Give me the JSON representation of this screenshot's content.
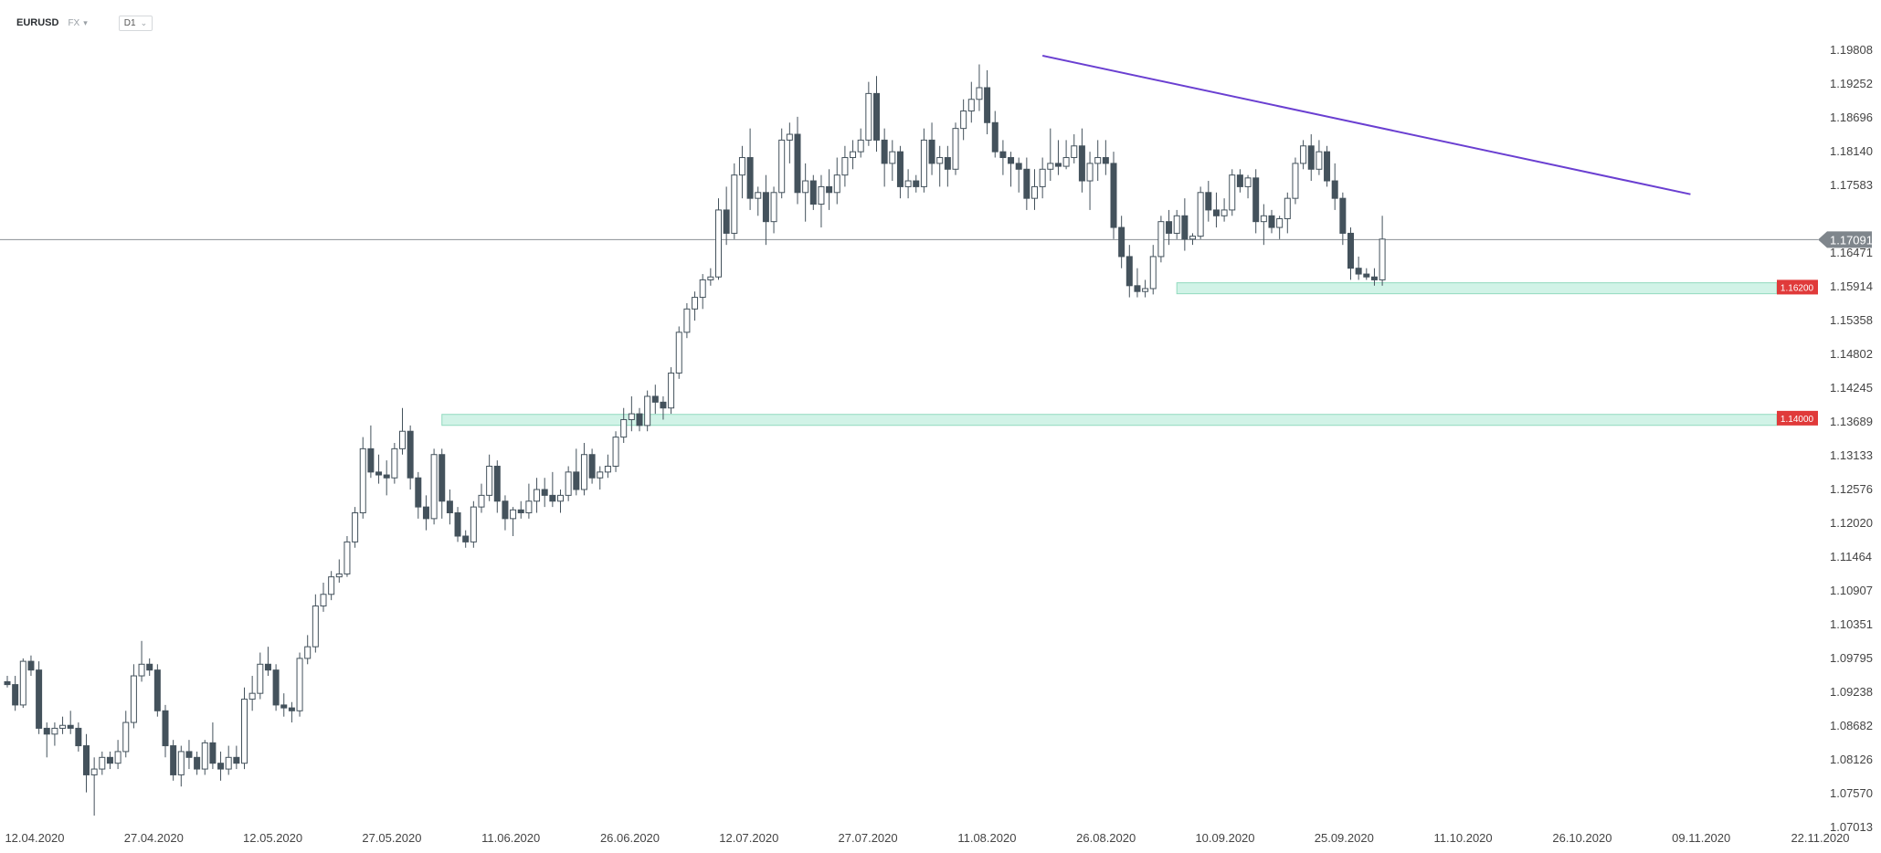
{
  "header": {
    "symbol": "EURUSD",
    "market": "FX",
    "timeframe": "D1"
  },
  "colors": {
    "bull_fill": "#ffffff",
    "bear_fill": "#44525c",
    "candle_stroke": "#44525c",
    "trendline": "#6a3fd1",
    "zone_fill": "#c9f2e3",
    "zone_stroke": "#7fd4b4",
    "price_line": "#8a8f94",
    "current_tag": "#7f868c",
    "level_tag": "#e03a3a"
  },
  "chart_data": {
    "type": "candlestick",
    "y_ticks": [
      "1.19808",
      "1.19252",
      "1.18696",
      "1.18140",
      "1.17583",
      "1.17091",
      "1.16471",
      "1.15914",
      "1.15358",
      "1.14802",
      "1.14245",
      "1.13689",
      "1.13133",
      "1.12576",
      "1.12020",
      "1.11464",
      "1.10907",
      "1.10351",
      "1.09795",
      "1.09238",
      "1.08682",
      "1.08126",
      "1.07570",
      "1.07013"
    ],
    "ylim": [
      1.07013,
      1.205
    ],
    "x_ticks": [
      "12.04.2020",
      "27.04.2020",
      "12.05.2020",
      "27.05.2020",
      "11.06.2020",
      "26.06.2020",
      "12.07.2020",
      "27.07.2020",
      "11.08.2020",
      "26.08.2020",
      "10.09.2020",
      "25.09.2020",
      "11.10.2020",
      "26.10.2020",
      "09.11.2020",
      "22.11.2020"
    ],
    "current_price": "1.17091",
    "levels": [
      {
        "label": "1.16200",
        "top": 1.1635,
        "bottom": 1.162,
        "from_index": 148
      },
      {
        "label": "1.14000",
        "top": 1.1409,
        "bottom": 1.1396,
        "from_index": 55
      }
    ],
    "trendline": {
      "from": {
        "index": 131,
        "price": 1.2025
      },
      "to": {
        "index": 213,
        "price": 1.1787
      }
    },
    "candles": [
      [
        1.095,
        1.096,
        1.094,
        1.0945
      ],
      [
        1.0945,
        1.096,
        1.09,
        1.091
      ],
      [
        1.091,
        1.099,
        1.0905,
        1.0985
      ],
      [
        1.0985,
        1.0995,
        1.096,
        1.097
      ],
      [
        1.097,
        1.0985,
        1.086,
        1.087
      ],
      [
        1.087,
        1.088,
        1.082,
        1.086
      ],
      [
        1.086,
        1.088,
        1.084,
        1.087
      ],
      [
        1.087,
        1.089,
        1.086,
        1.0875
      ],
      [
        1.0875,
        1.09,
        1.086,
        1.087
      ],
      [
        1.087,
        1.088,
        1.083,
        1.084
      ],
      [
        1.084,
        1.086,
        1.076,
        1.079
      ],
      [
        1.079,
        1.082,
        1.072,
        1.08
      ],
      [
        1.08,
        1.083,
        1.079,
        1.082
      ],
      [
        1.082,
        1.083,
        1.08,
        1.081
      ],
      [
        1.081,
        1.085,
        1.08,
        1.083
      ],
      [
        1.083,
        1.09,
        1.082,
        1.088
      ],
      [
        1.088,
        1.098,
        1.087,
        1.096
      ],
      [
        1.096,
        1.102,
        1.095,
        1.098
      ],
      [
        1.098,
        1.099,
        1.096,
        1.097
      ],
      [
        1.097,
        1.098,
        1.089,
        1.09
      ],
      [
        1.09,
        1.091,
        1.082,
        1.084
      ],
      [
        1.084,
        1.085,
        1.078,
        1.079
      ],
      [
        1.079,
        1.084,
        1.077,
        1.083
      ],
      [
        1.083,
        1.085,
        1.08,
        1.082
      ],
      [
        1.082,
        1.083,
        1.079,
        1.08
      ],
      [
        1.08,
        1.085,
        1.079,
        1.0845
      ],
      [
        1.0845,
        1.088,
        1.08,
        1.081
      ],
      [
        1.081,
        1.083,
        1.078,
        1.08
      ],
      [
        1.08,
        1.084,
        1.079,
        1.082
      ],
      [
        1.082,
        1.084,
        1.08,
        1.081
      ],
      [
        1.081,
        1.094,
        1.08,
        1.092
      ],
      [
        1.092,
        1.096,
        1.09,
        1.093
      ],
      [
        1.093,
        1.1,
        1.092,
        1.098
      ],
      [
        1.098,
        1.101,
        1.096,
        1.097
      ],
      [
        1.097,
        1.098,
        1.09,
        1.091
      ],
      [
        1.091,
        1.093,
        1.089,
        1.0905
      ],
      [
        1.0905,
        1.0915,
        1.088,
        1.09
      ],
      [
        1.09,
        1.1,
        1.089,
        1.099
      ],
      [
        1.099,
        1.103,
        1.098,
        1.101
      ],
      [
        1.101,
        1.11,
        1.1,
        1.108
      ],
      [
        1.108,
        1.112,
        1.107,
        1.11
      ],
      [
        1.11,
        1.114,
        1.109,
        1.113
      ],
      [
        1.113,
        1.116,
        1.112,
        1.1135
      ],
      [
        1.1135,
        1.12,
        1.113,
        1.119
      ],
      [
        1.119,
        1.125,
        1.118,
        1.124
      ],
      [
        1.124,
        1.137,
        1.123,
        1.135
      ],
      [
        1.135,
        1.139,
        1.13,
        1.131
      ],
      [
        1.131,
        1.134,
        1.129,
        1.1305
      ],
      [
        1.1305,
        1.133,
        1.127,
        1.13
      ],
      [
        1.13,
        1.136,
        1.129,
        1.135
      ],
      [
        1.135,
        1.142,
        1.134,
        1.138
      ],
      [
        1.138,
        1.139,
        1.128,
        1.13
      ],
      [
        1.13,
        1.131,
        1.123,
        1.125
      ],
      [
        1.125,
        1.127,
        1.121,
        1.123
      ],
      [
        1.123,
        1.135,
        1.122,
        1.134
      ],
      [
        1.134,
        1.135,
        1.123,
        1.126
      ],
      [
        1.126,
        1.128,
        1.122,
        1.124
      ],
      [
        1.124,
        1.125,
        1.119,
        1.12
      ],
      [
        1.12,
        1.121,
        1.118,
        1.119
      ],
      [
        1.119,
        1.126,
        1.118,
        1.125
      ],
      [
        1.125,
        1.129,
        1.124,
        1.127
      ],
      [
        1.127,
        1.134,
        1.126,
        1.132
      ],
      [
        1.132,
        1.133,
        1.124,
        1.126
      ],
      [
        1.126,
        1.127,
        1.121,
        1.123
      ],
      [
        1.123,
        1.125,
        1.12,
        1.1245
      ],
      [
        1.1245,
        1.126,
        1.123,
        1.124
      ],
      [
        1.124,
        1.129,
        1.123,
        1.126
      ],
      [
        1.126,
        1.13,
        1.124,
        1.128
      ],
      [
        1.128,
        1.13,
        1.125,
        1.127
      ],
      [
        1.127,
        1.131,
        1.125,
        1.126
      ],
      [
        1.126,
        1.128,
        1.124,
        1.127
      ],
      [
        1.127,
        1.132,
        1.126,
        1.131
      ],
      [
        1.131,
        1.135,
        1.127,
        1.128
      ],
      [
        1.128,
        1.136,
        1.127,
        1.134
      ],
      [
        1.134,
        1.135,
        1.129,
        1.13
      ],
      [
        1.13,
        1.132,
        1.128,
        1.131
      ],
      [
        1.131,
        1.134,
        1.13,
        1.132
      ],
      [
        1.132,
        1.138,
        1.131,
        1.137
      ],
      [
        1.137,
        1.142,
        1.136,
        1.14
      ],
      [
        1.14,
        1.144,
        1.138,
        1.141
      ],
      [
        1.141,
        1.142,
        1.138,
        1.139
      ],
      [
        1.139,
        1.145,
        1.138,
        1.144
      ],
      [
        1.144,
        1.146,
        1.141,
        1.143
      ],
      [
        1.143,
        1.144,
        1.14,
        1.142
      ],
      [
        1.142,
        1.149,
        1.141,
        1.148
      ],
      [
        1.148,
        1.156,
        1.147,
        1.155
      ],
      [
        1.155,
        1.16,
        1.154,
        1.159
      ],
      [
        1.159,
        1.162,
        1.157,
        1.161
      ],
      [
        1.161,
        1.165,
        1.159,
        1.164
      ],
      [
        1.164,
        1.166,
        1.163,
        1.1645
      ],
      [
        1.1645,
        1.178,
        1.164,
        1.176
      ],
      [
        1.176,
        1.18,
        1.17,
        1.172
      ],
      [
        1.172,
        1.184,
        1.171,
        1.182
      ],
      [
        1.182,
        1.187,
        1.178,
        1.185
      ],
      [
        1.185,
        1.19,
        1.176,
        1.178
      ],
      [
        1.178,
        1.18,
        1.175,
        1.179
      ],
      [
        1.179,
        1.182,
        1.17,
        1.174
      ],
      [
        1.174,
        1.18,
        1.172,
        1.179
      ],
      [
        1.179,
        1.19,
        1.178,
        1.188
      ],
      [
        1.188,
        1.191,
        1.184,
        1.189
      ],
      [
        1.189,
        1.192,
        1.177,
        1.179
      ],
      [
        1.179,
        1.184,
        1.174,
        1.181
      ],
      [
        1.181,
        1.182,
        1.176,
        1.177
      ],
      [
        1.177,
        1.182,
        1.173,
        1.18
      ],
      [
        1.18,
        1.183,
        1.176,
        1.179
      ],
      [
        1.179,
        1.185,
        1.177,
        1.182
      ],
      [
        1.182,
        1.187,
        1.18,
        1.185
      ],
      [
        1.185,
        1.188,
        1.183,
        1.186
      ],
      [
        1.186,
        1.19,
        1.185,
        1.188
      ],
      [
        1.188,
        1.198,
        1.187,
        1.196
      ],
      [
        1.196,
        1.199,
        1.186,
        1.188
      ],
      [
        1.188,
        1.19,
        1.18,
        1.184
      ],
      [
        1.184,
        1.188,
        1.181,
        1.186
      ],
      [
        1.186,
        1.187,
        1.178,
        1.18
      ],
      [
        1.18,
        1.183,
        1.178,
        1.181
      ],
      [
        1.181,
        1.182,
        1.179,
        1.18
      ],
      [
        1.18,
        1.19,
        1.179,
        1.188
      ],
      [
        1.188,
        1.191,
        1.182,
        1.184
      ],
      [
        1.184,
        1.187,
        1.18,
        1.185
      ],
      [
        1.185,
        1.187,
        1.18,
        1.183
      ],
      [
        1.183,
        1.191,
        1.182,
        1.19
      ],
      [
        1.19,
        1.195,
        1.188,
        1.193
      ],
      [
        1.193,
        1.198,
        1.191,
        1.195
      ],
      [
        1.195,
        1.201,
        1.193,
        1.197
      ],
      [
        1.197,
        1.2,
        1.189,
        1.191
      ],
      [
        1.191,
        1.193,
        1.185,
        1.186
      ],
      [
        1.186,
        1.188,
        1.182,
        1.185
      ],
      [
        1.185,
        1.186,
        1.18,
        1.184
      ],
      [
        1.184,
        1.185,
        1.179,
        1.183
      ],
      [
        1.183,
        1.185,
        1.176,
        1.178
      ],
      [
        1.178,
        1.183,
        1.176,
        1.18
      ],
      [
        1.18,
        1.185,
        1.178,
        1.183
      ],
      [
        1.183,
        1.19,
        1.181,
        1.184
      ],
      [
        1.184,
        1.188,
        1.182,
        1.1835
      ],
      [
        1.1835,
        1.188,
        1.183,
        1.185
      ],
      [
        1.185,
        1.189,
        1.184,
        1.187
      ],
      [
        1.187,
        1.19,
        1.179,
        1.181
      ],
      [
        1.181,
        1.186,
        1.176,
        1.184
      ],
      [
        1.184,
        1.188,
        1.181,
        1.185
      ],
      [
        1.185,
        1.188,
        1.182,
        1.184
      ],
      [
        1.184,
        1.186,
        1.171,
        1.173
      ],
      [
        1.173,
        1.175,
        1.166,
        1.168
      ],
      [
        1.168,
        1.17,
        1.161,
        1.163
      ],
      [
        1.163,
        1.166,
        1.161,
        1.162
      ],
      [
        1.162,
        1.164,
        1.161,
        1.1625
      ],
      [
        1.1625,
        1.17,
        1.1615,
        1.168
      ],
      [
        1.168,
        1.175,
        1.167,
        1.174
      ],
      [
        1.174,
        1.176,
        1.17,
        1.172
      ],
      [
        1.172,
        1.176,
        1.171,
        1.175
      ],
      [
        1.175,
        1.178,
        1.169,
        1.171
      ],
      [
        1.171,
        1.172,
        1.17,
        1.1715
      ],
      [
        1.1715,
        1.18,
        1.171,
        1.179
      ],
      [
        1.179,
        1.181,
        1.174,
        1.176
      ],
      [
        1.176,
        1.179,
        1.173,
        1.175
      ],
      [
        1.175,
        1.178,
        1.174,
        1.176
      ],
      [
        1.176,
        1.183,
        1.175,
        1.182
      ],
      [
        1.182,
        1.183,
        1.179,
        1.18
      ],
      [
        1.18,
        1.182,
        1.178,
        1.1815
      ],
      [
        1.1815,
        1.183,
        1.172,
        1.174
      ],
      [
        1.174,
        1.177,
        1.17,
        1.175
      ],
      [
        1.175,
        1.176,
        1.172,
        1.173
      ],
      [
        1.173,
        1.175,
        1.171,
        1.1745
      ],
      [
        1.1745,
        1.179,
        1.172,
        1.178
      ],
      [
        1.178,
        1.185,
        1.177,
        1.184
      ],
      [
        1.184,
        1.188,
        1.183,
        1.187
      ],
      [
        1.187,
        1.189,
        1.181,
        1.183
      ],
      [
        1.183,
        1.188,
        1.182,
        1.186
      ],
      [
        1.186,
        1.187,
        1.18,
        1.181
      ],
      [
        1.181,
        1.184,
        1.176,
        1.178
      ],
      [
        1.178,
        1.179,
        1.17,
        1.172
      ],
      [
        1.172,
        1.173,
        1.164,
        1.166
      ],
      [
        1.166,
        1.168,
        1.164,
        1.165
      ],
      [
        1.165,
        1.166,
        1.164,
        1.1645
      ],
      [
        1.1645,
        1.166,
        1.163,
        1.164
      ],
      [
        1.164,
        1.175,
        1.163,
        1.171
      ]
    ]
  }
}
